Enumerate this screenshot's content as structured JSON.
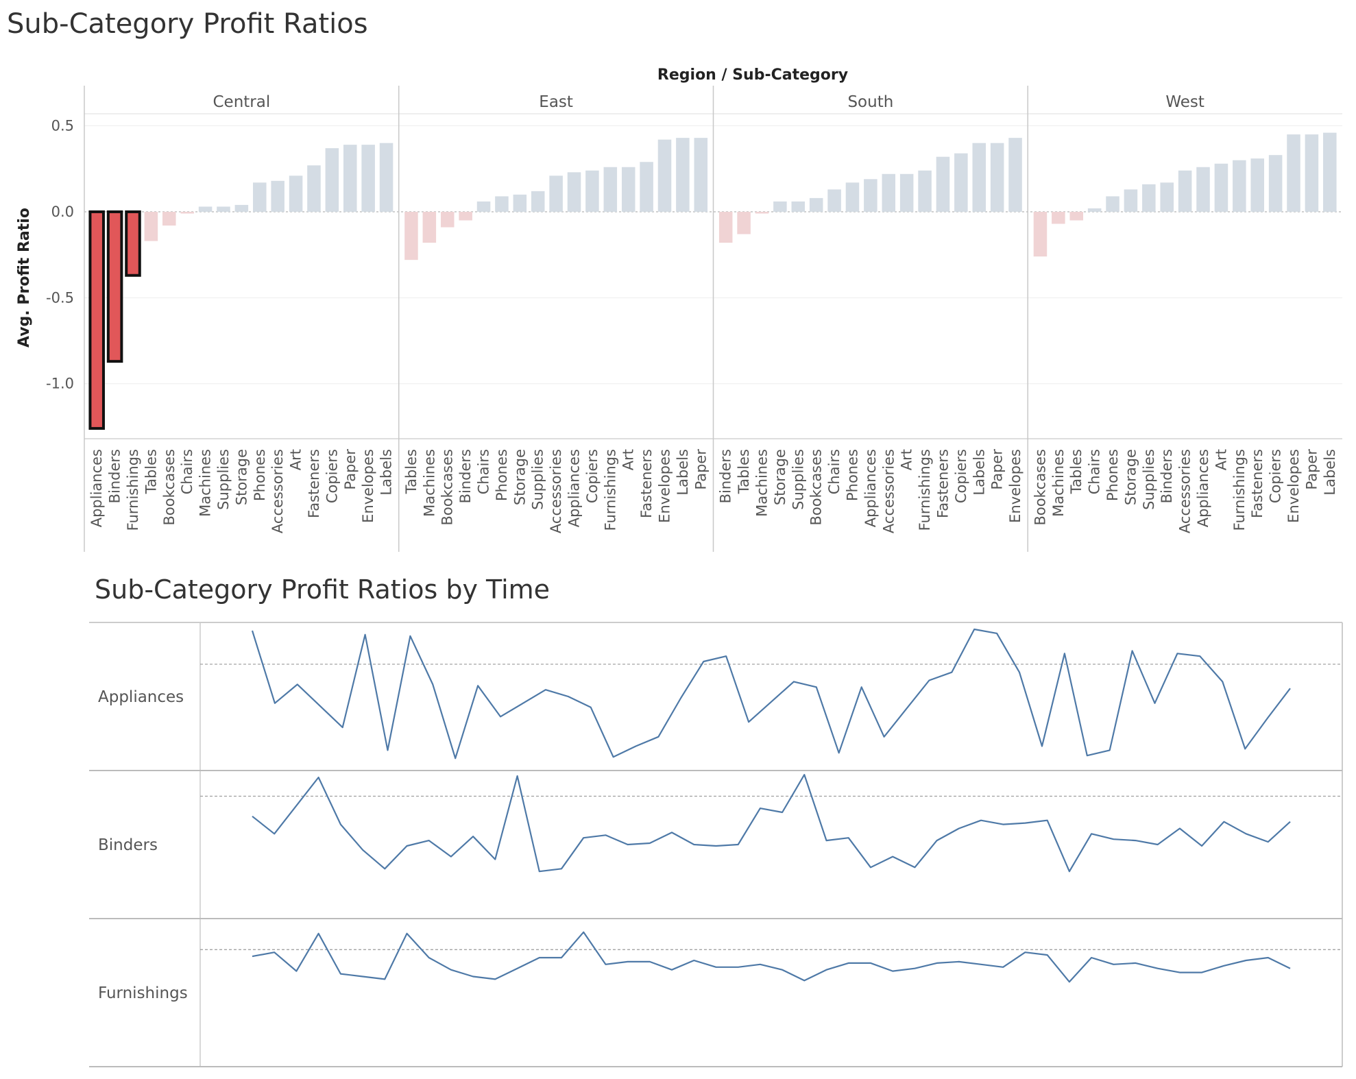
{
  "dashboard": {
    "title_top": "Sub-Category Profit Ratios",
    "title_bottom": "Sub-Category Profit Ratios by Time"
  },
  "colors": {
    "highlight_fill": "#e15759",
    "negative_muted": "#f0d3d4",
    "positive_muted": "#d4dce4",
    "line": "#4e79a7",
    "gridline": "#eeeeee",
    "divider": "#c8c8c8"
  },
  "chart_data": [
    {
      "type": "bar",
      "title": "Sub-Category Profit Ratios",
      "header_label": "Region / Sub-Category",
      "ylabel": "Avg. Profit Ratio",
      "ylim": [
        -1.32,
        0.57
      ],
      "yticks": [
        0.5,
        0.0,
        -0.5,
        -1.0
      ],
      "ytick_labels": [
        "0.5",
        "0.0",
        "-0.5",
        "-1.0"
      ],
      "highlighted": "Central: Appliances, Binders, Furnishings",
      "panels": [
        {
          "region": "Central",
          "categories": [
            "Appliances",
            "Binders",
            "Furnishings",
            "Tables",
            "Bookcases",
            "Chairs",
            "Machines",
            "Supplies",
            "Storage",
            "Phones",
            "Accessories",
            "Art",
            "Fasteners",
            "Copiers",
            "Paper",
            "Envelopes",
            "Labels"
          ],
          "values": [
            -1.26,
            -0.87,
            -0.37,
            -0.17,
            -0.08,
            -0.01,
            0.03,
            0.03,
            0.04,
            0.17,
            0.18,
            0.21,
            0.27,
            0.37,
            0.39,
            0.39,
            0.4
          ],
          "highlight": [
            true,
            true,
            true,
            false,
            false,
            false,
            false,
            false,
            false,
            false,
            false,
            false,
            false,
            false,
            false,
            false,
            false
          ]
        },
        {
          "region": "East",
          "categories": [
            "Tables",
            "Machines",
            "Bookcases",
            "Binders",
            "Chairs",
            "Phones",
            "Storage",
            "Supplies",
            "Accessories",
            "Appliances",
            "Copiers",
            "Furnishings",
            "Art",
            "Fasteners",
            "Envelopes",
            "Labels",
            "Paper"
          ],
          "values": [
            -0.28,
            -0.18,
            -0.09,
            -0.05,
            0.06,
            0.09,
            0.1,
            0.12,
            0.21,
            0.23,
            0.24,
            0.26,
            0.26,
            0.29,
            0.42,
            0.43,
            0.43
          ],
          "highlight": [
            false,
            false,
            false,
            false,
            false,
            false,
            false,
            false,
            false,
            false,
            false,
            false,
            false,
            false,
            false,
            false,
            false
          ]
        },
        {
          "region": "South",
          "categories": [
            "Binders",
            "Tables",
            "Machines",
            "Storage",
            "Supplies",
            "Bookcases",
            "Chairs",
            "Phones",
            "Appliances",
            "Accessories",
            "Art",
            "Furnishings",
            "Fasteners",
            "Copiers",
            "Labels",
            "Paper",
            "Envelopes"
          ],
          "values": [
            -0.18,
            -0.13,
            -0.01,
            0.06,
            0.06,
            0.08,
            0.13,
            0.17,
            0.19,
            0.22,
            0.22,
            0.24,
            0.32,
            0.34,
            0.4,
            0.4,
            0.43
          ],
          "highlight": [
            false,
            false,
            false,
            false,
            false,
            false,
            false,
            false,
            false,
            false,
            false,
            false,
            false,
            false,
            false,
            false,
            false
          ]
        },
        {
          "region": "West",
          "categories": [
            "Bookcases",
            "Machines",
            "Tables",
            "Chairs",
            "Phones",
            "Storage",
            "Supplies",
            "Binders",
            "Accessories",
            "Appliances",
            "Art",
            "Furnishings",
            "Fasteners",
            "Copiers",
            "Envelopes",
            "Paper",
            "Labels"
          ],
          "values": [
            -0.26,
            -0.07,
            -0.05,
            0.02,
            0.09,
            0.13,
            0.16,
            0.17,
            0.24,
            0.26,
            0.28,
            0.3,
            0.31,
            0.33,
            0.45,
            0.45,
            0.46
          ],
          "highlight": [
            false,
            false,
            false,
            false,
            false,
            false,
            false,
            false,
            false,
            false,
            false,
            false,
            false,
            false,
            false,
            false,
            false
          ]
        }
      ]
    },
    {
      "type": "line",
      "title": "Sub-Category Profit Ratios by Time",
      "series": [
        {
          "name": "Appliances",
          "values": [
            0.99,
            0.45,
            0.59,
            0.43,
            0.27,
            0.96,
            0.1,
            0.95,
            0.59,
            0.04,
            0.58,
            0.35,
            0.45,
            0.55,
            0.5,
            0.42,
            0.05,
            0.13,
            0.2,
            0.49,
            0.76,
            0.8,
            0.31,
            0.46,
            0.61,
            0.57,
            0.08,
            0.57,
            0.2,
            0.41,
            0.62,
            0.68,
            1.0,
            0.97,
            0.68,
            0.13,
            0.82,
            0.06,
            0.1,
            0.84,
            0.45,
            0.82,
            0.8,
            0.61,
            0.11,
            0.34,
            0.56
          ],
          "mean": 0.74
        },
        {
          "name": "Binders",
          "values": [
            0.71,
            0.58,
            0.79,
            1.0,
            0.65,
            0.46,
            0.32,
            0.49,
            0.53,
            0.41,
            0.56,
            0.39,
            1.01,
            0.3,
            0.32,
            0.55,
            0.57,
            0.5,
            0.51,
            0.59,
            0.5,
            0.49,
            0.5,
            0.77,
            0.74,
            1.02,
            0.53,
            0.55,
            0.33,
            0.41,
            0.33,
            0.53,
            0.62,
            0.68,
            0.65,
            0.66,
            0.68,
            0.3,
            0.58,
            0.54,
            0.53,
            0.5,
            0.62,
            0.49,
            0.67,
            0.58,
            0.52,
            0.67
          ],
          "mean": 0.86
        },
        {
          "name": "Furnishings",
          "values": [
            0.77,
            0.8,
            0.66,
            0.94,
            0.64,
            0.62,
            0.6,
            0.94,
            0.76,
            0.67,
            0.62,
            0.6,
            0.68,
            0.76,
            0.76,
            0.95,
            0.71,
            0.73,
            0.73,
            0.67,
            0.74,
            0.69,
            0.69,
            0.71,
            0.67,
            0.59,
            0.67,
            0.72,
            0.72,
            0.66,
            0.68,
            0.72,
            0.73,
            0.71,
            0.69,
            0.8,
            0.78,
            0.58,
            0.76,
            0.71,
            0.72,
            0.68,
            0.65,
            0.65,
            0.7,
            0.74,
            0.76,
            0.68
          ],
          "mean": 0.82
        }
      ]
    }
  ]
}
